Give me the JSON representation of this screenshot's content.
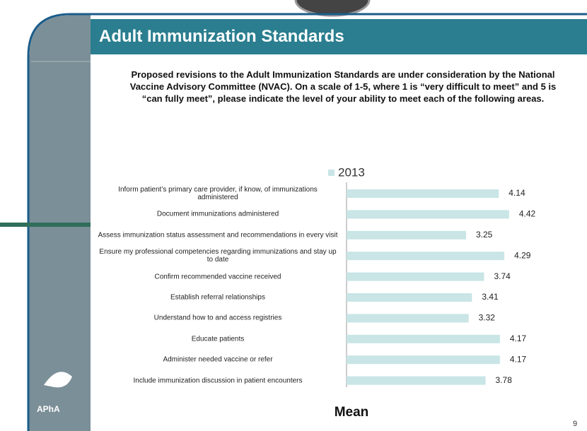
{
  "slide": {
    "title": "Adult Immunization Standards",
    "logo": "APhA",
    "page_number": 9
  },
  "chart_data": {
    "type": "bar",
    "orientation": "horizontal",
    "title": "Proposed revisions to the Adult Immunization Standards are under consideration by the National Vaccine Advisory Committee (NVAC).  On a scale of 1-5, where 1 is “very difficult to meet” and 5 is “can fully meet”, please indicate the level of your ability to meet each of the following areas.",
    "xlabel": "Mean",
    "categories": [
      "Inform patient’s primary care provider, if know, of immunizations administered",
      "Document immunizations administered",
      "Assess immunization status  assessment and recommendations in every visit",
      "Ensure my professional competencies regarding immunizations and stay up to date",
      "Confirm recommended vaccine received",
      "Establish referral relationships",
      "Understand how to and access registries",
      "Educate patients",
      "Administer needed vaccine or refer",
      "Include immunization discussion in patient encounters"
    ],
    "series": [
      {
        "name": "2013",
        "color": "#c9e5e6",
        "values": [
          4.14,
          4.42,
          3.25,
          4.29,
          3.74,
          3.41,
          3.32,
          4.17,
          4.17,
          3.78
        ]
      }
    ],
    "xlim": [
      0,
      5
    ],
    "legend": "top"
  }
}
